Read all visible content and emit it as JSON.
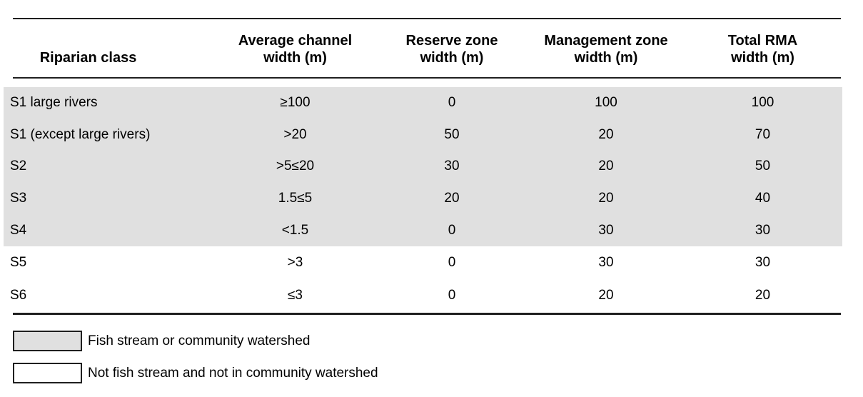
{
  "table": {
    "columns": [
      {
        "lines": [
          "Riparian class",
          ""
        ]
      },
      {
        "lines": [
          "Average channel",
          "width (m)"
        ]
      },
      {
        "lines": [
          "Reserve zone",
          "width (m)"
        ]
      },
      {
        "lines": [
          "Management zone",
          "width (m)"
        ]
      },
      {
        "lines": [
          "Total RMA",
          "width (m)"
        ]
      }
    ],
    "rows": [
      {
        "riparian_class": "S1 large rivers",
        "avg_channel_width": "≥100",
        "reserve_width": "0",
        "management_width": "100",
        "total_width": "100",
        "shaded": true
      },
      {
        "riparian_class": "S1 (except large rivers)",
        "avg_channel_width": ">20",
        "reserve_width": "50",
        "management_width": "20",
        "total_width": "70",
        "shaded": true
      },
      {
        "riparian_class": "S2",
        "avg_channel_width": ">5≤20",
        "reserve_width": "30",
        "management_width": "20",
        "total_width": "50",
        "shaded": true
      },
      {
        "riparian_class": "S3",
        "avg_channel_width": "1.5≤5",
        "reserve_width": "20",
        "management_width": "20",
        "total_width": "40",
        "shaded": true
      },
      {
        "riparian_class": "S4",
        "avg_channel_width": "<1.5",
        "reserve_width": "0",
        "management_width": "30",
        "total_width": "30",
        "shaded": true
      },
      {
        "riparian_class": "S5",
        "avg_channel_width": ">3",
        "reserve_width": "0",
        "management_width": "30",
        "total_width": "30",
        "shaded": false
      },
      {
        "riparian_class": "S6",
        "avg_channel_width": "≤3",
        "reserve_width": "0",
        "management_width": "20",
        "total_width": "20",
        "shaded": false
      }
    ]
  },
  "legend": {
    "items": [
      {
        "swatch": "shaded-swatch",
        "label": "Fish stream or community watershed"
      },
      {
        "swatch": "unshaded-swatch",
        "label": "Not fish stream and not in community watershed"
      }
    ]
  },
  "colors": {
    "shaded_row": "#e0e0e0",
    "rule": "#1f1f1f",
    "text": "#000000",
    "background": "#ffffff"
  }
}
